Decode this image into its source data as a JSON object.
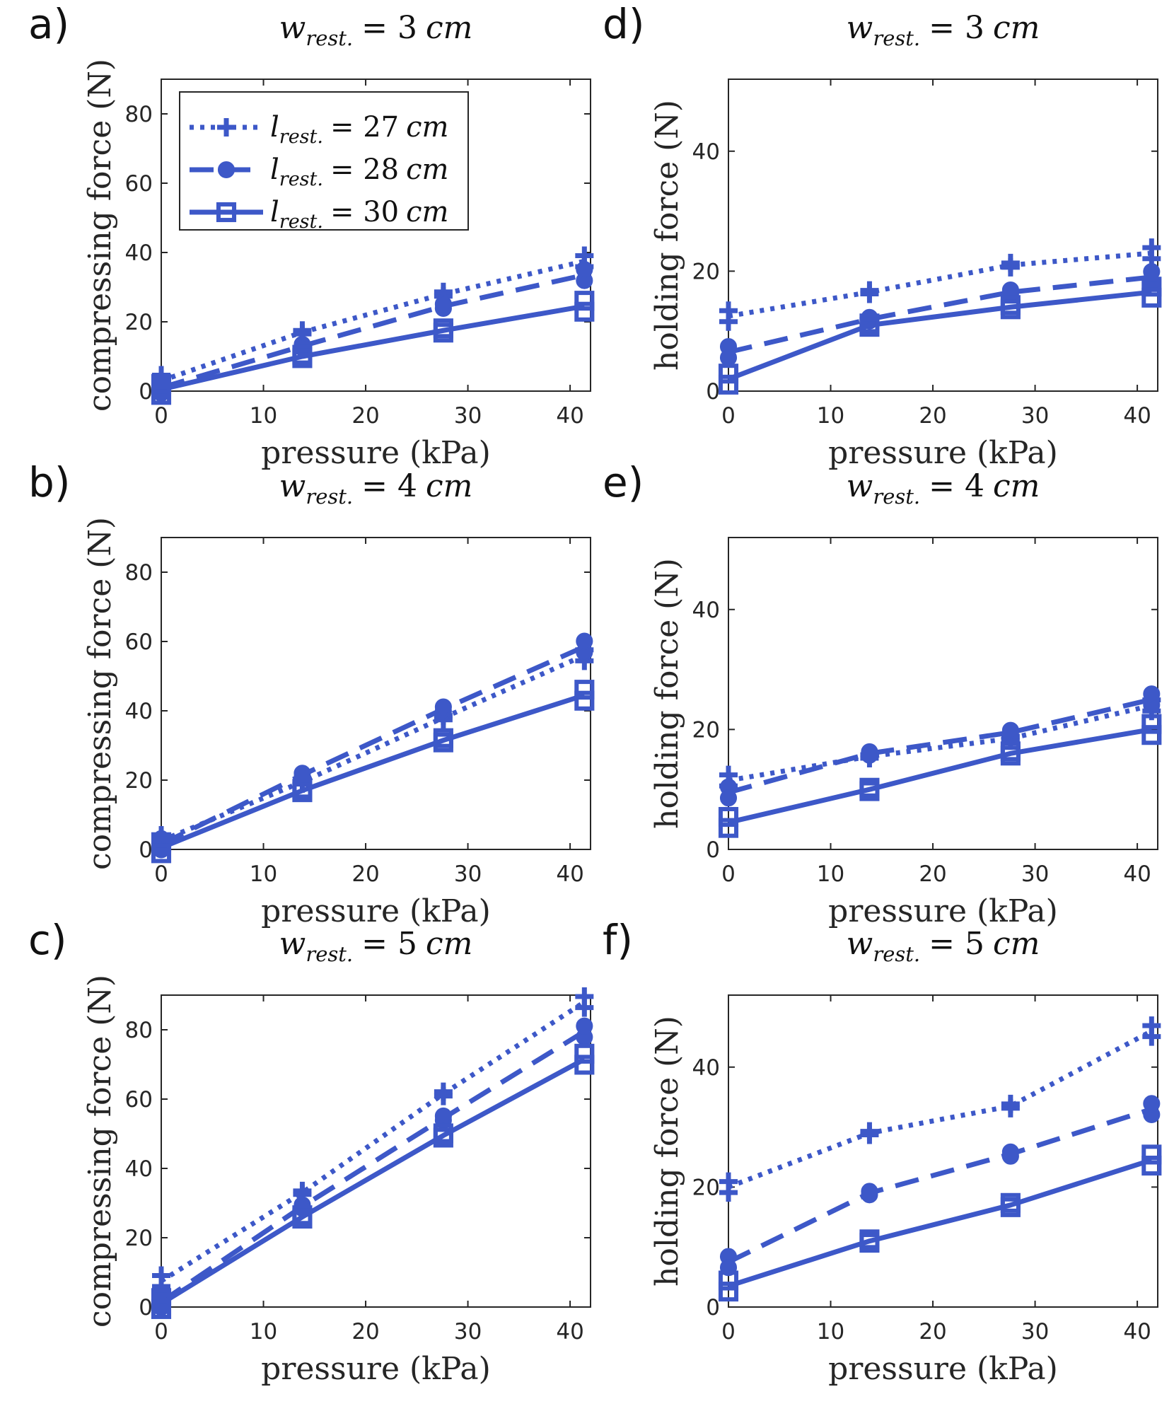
{
  "colors": {
    "series": "#3d58c8",
    "axis": "#262626"
  },
  "chart_data": [
    {
      "id": "a",
      "panel_label": "a)",
      "type": "line",
      "title": {
        "var": "w",
        "sub": "rest.",
        "rhs": "= 3",
        "unit": "cm"
      },
      "xlabel": "pressure (kPa)",
      "ylabel": "compressing force (N)",
      "xlim": [
        0,
        42
      ],
      "ylim": [
        0,
        90
      ],
      "xticks": [
        0,
        10,
        20,
        30,
        40
      ],
      "yticks": [
        0,
        20,
        40,
        60,
        80
      ],
      "x": [
        0,
        13.8,
        27.6,
        41.4
      ],
      "series": [
        {
          "name": "l_rest. = 27 cm",
          "style": "dotted",
          "marker": "plus",
          "values": [
            3,
            17,
            28,
            37.5
          ]
        },
        {
          "name": "l_rest. = 28 cm",
          "style": "dashed",
          "marker": "circle",
          "values": [
            1,
            13,
            24.5,
            33.5
          ]
        },
        {
          "name": "l_rest. = 30 cm",
          "style": "solid",
          "marker": "square",
          "values": [
            0.5,
            10,
            17.5,
            24.5
          ]
        }
      ]
    },
    {
      "id": "b",
      "panel_label": "b)",
      "type": "line",
      "title": {
        "var": "w",
        "sub": "rest.",
        "rhs": "= 4",
        "unit": "cm"
      },
      "xlabel": "pressure (kPa)",
      "ylabel": "compressing force (N)",
      "xlim": [
        0,
        42
      ],
      "ylim": [
        0,
        90
      ],
      "xticks": [
        0,
        10,
        20,
        30,
        40
      ],
      "yticks": [
        0,
        20,
        40,
        60,
        80
      ],
      "x": [
        0,
        13.8,
        27.6,
        41.4
      ],
      "series": [
        {
          "name": "l_rest. = 27 cm",
          "style": "dotted",
          "marker": "plus",
          "values": [
            2.5,
            19.5,
            38,
            56
          ]
        },
        {
          "name": "l_rest. = 28 cm",
          "style": "dashed",
          "marker": "circle",
          "values": [
            1.5,
            21.5,
            40.5,
            58.5
          ]
        },
        {
          "name": "l_rest. = 30 cm",
          "style": "solid",
          "marker": "square",
          "values": [
            0.5,
            17,
            31.5,
            44.5
          ]
        }
      ]
    },
    {
      "id": "c",
      "panel_label": "c)",
      "type": "line",
      "title": {
        "var": "w",
        "sub": "rest.",
        "rhs": "= 5",
        "unit": "cm"
      },
      "xlabel": "pressure (kPa)",
      "ylabel": "compressing force (N)",
      "xlim": [
        0,
        42
      ],
      "ylim": [
        0,
        90
      ],
      "xticks": [
        0,
        10,
        20,
        30,
        40
      ],
      "yticks": [
        0,
        20,
        40,
        60,
        80
      ],
      "x": [
        0,
        13.8,
        27.6,
        41.4
      ],
      "series": [
        {
          "name": "l_rest. = 27 cm",
          "style": "dotted",
          "marker": "plus",
          "values": [
            7.5,
            33,
            61.5,
            88
          ]
        },
        {
          "name": "l_rest. = 28 cm",
          "style": "dashed",
          "marker": "circle",
          "values": [
            1.5,
            29,
            54.5,
            79.5
          ]
        },
        {
          "name": "l_rest. = 30 cm",
          "style": "solid",
          "marker": "square",
          "values": [
            1,
            26,
            49.5,
            71.5
          ]
        }
      ]
    },
    {
      "id": "d",
      "panel_label": "d)",
      "type": "line",
      "title": {
        "var": "w",
        "sub": "rest.",
        "rhs": "= 3",
        "unit": "cm"
      },
      "xlabel": "pressure (kPa)",
      "ylabel": "holding force (N)",
      "xlim": [
        0,
        42
      ],
      "ylim": [
        0,
        52
      ],
      "xticks": [
        0,
        10,
        20,
        30,
        40
      ],
      "yticks": [
        0,
        20,
        40
      ],
      "x": [
        0,
        13.8,
        27.6,
        41.4
      ],
      "series": [
        {
          "name": "l_rest. = 27 cm",
          "style": "dotted",
          "marker": "plus",
          "values": [
            12.5,
            16.5,
            21,
            23
          ]
        },
        {
          "name": "l_rest. = 28 cm",
          "style": "dashed",
          "marker": "circle",
          "values": [
            6.5,
            12,
            16.5,
            19
          ]
        },
        {
          "name": "l_rest. = 30 cm",
          "style": "solid",
          "marker": "square",
          "values": [
            2,
            11,
            14,
            16.5
          ]
        }
      ]
    },
    {
      "id": "e",
      "panel_label": "e)",
      "type": "line",
      "title": {
        "var": "w",
        "sub": "rest.",
        "rhs": "= 4",
        "unit": "cm"
      },
      "xlabel": "pressure (kPa)",
      "ylabel": "holding force (N)",
      "xlim": [
        0,
        42
      ],
      "ylim": [
        0,
        52
      ],
      "xticks": [
        0,
        10,
        20,
        30,
        40
      ],
      "yticks": [
        0,
        20,
        40
      ],
      "x": [
        0,
        13.8,
        27.6,
        41.4
      ],
      "series": [
        {
          "name": "l_rest. = 27 cm",
          "style": "dotted",
          "marker": "plus",
          "values": [
            11.5,
            15.5,
            18.5,
            24
          ]
        },
        {
          "name": "l_rest. = 28 cm",
          "style": "dashed",
          "marker": "circle",
          "values": [
            9.5,
            16,
            19.5,
            25
          ]
        },
        {
          "name": "l_rest. = 30 cm",
          "style": "solid",
          "marker": "square",
          "values": [
            4.5,
            10,
            16,
            20
          ]
        }
      ]
    },
    {
      "id": "f",
      "panel_label": "f)",
      "type": "line",
      "title": {
        "var": "w",
        "sub": "rest.",
        "rhs": "= 5",
        "unit": "cm"
      },
      "xlabel": "pressure (kPa)",
      "ylabel": "holding force (N)",
      "xlim": [
        0,
        42
      ],
      "ylim": [
        0,
        52
      ],
      "xticks": [
        0,
        10,
        20,
        30,
        40
      ],
      "yticks": [
        0,
        20,
        40
      ],
      "x": [
        0,
        13.8,
        27.6,
        41.4
      ],
      "series": [
        {
          "name": "l_rest. = 27 cm",
          "style": "dotted",
          "marker": "plus",
          "values": [
            20,
            29,
            33.5,
            46
          ]
        },
        {
          "name": "l_rest. = 28 cm",
          "style": "dashed",
          "marker": "circle",
          "values": [
            7.5,
            19,
            25.5,
            33
          ]
        },
        {
          "name": "l_rest. = 30 cm",
          "style": "solid",
          "marker": "square",
          "values": [
            3.5,
            11,
            17,
            24.5
          ]
        }
      ]
    }
  ],
  "legend": {
    "location": "top-left of panel a",
    "entries": [
      {
        "var": "l",
        "sub": "rest.",
        "rhs": "= 27",
        "unit": "cm",
        "style": "dotted",
        "marker": "plus"
      },
      {
        "var": "l",
        "sub": "rest.",
        "rhs": "= 28",
        "unit": "cm",
        "style": "dashed",
        "marker": "circle"
      },
      {
        "var": "l",
        "sub": "rest.",
        "rhs": "= 30",
        "unit": "cm",
        "style": "solid",
        "marker": "square"
      }
    ]
  }
}
